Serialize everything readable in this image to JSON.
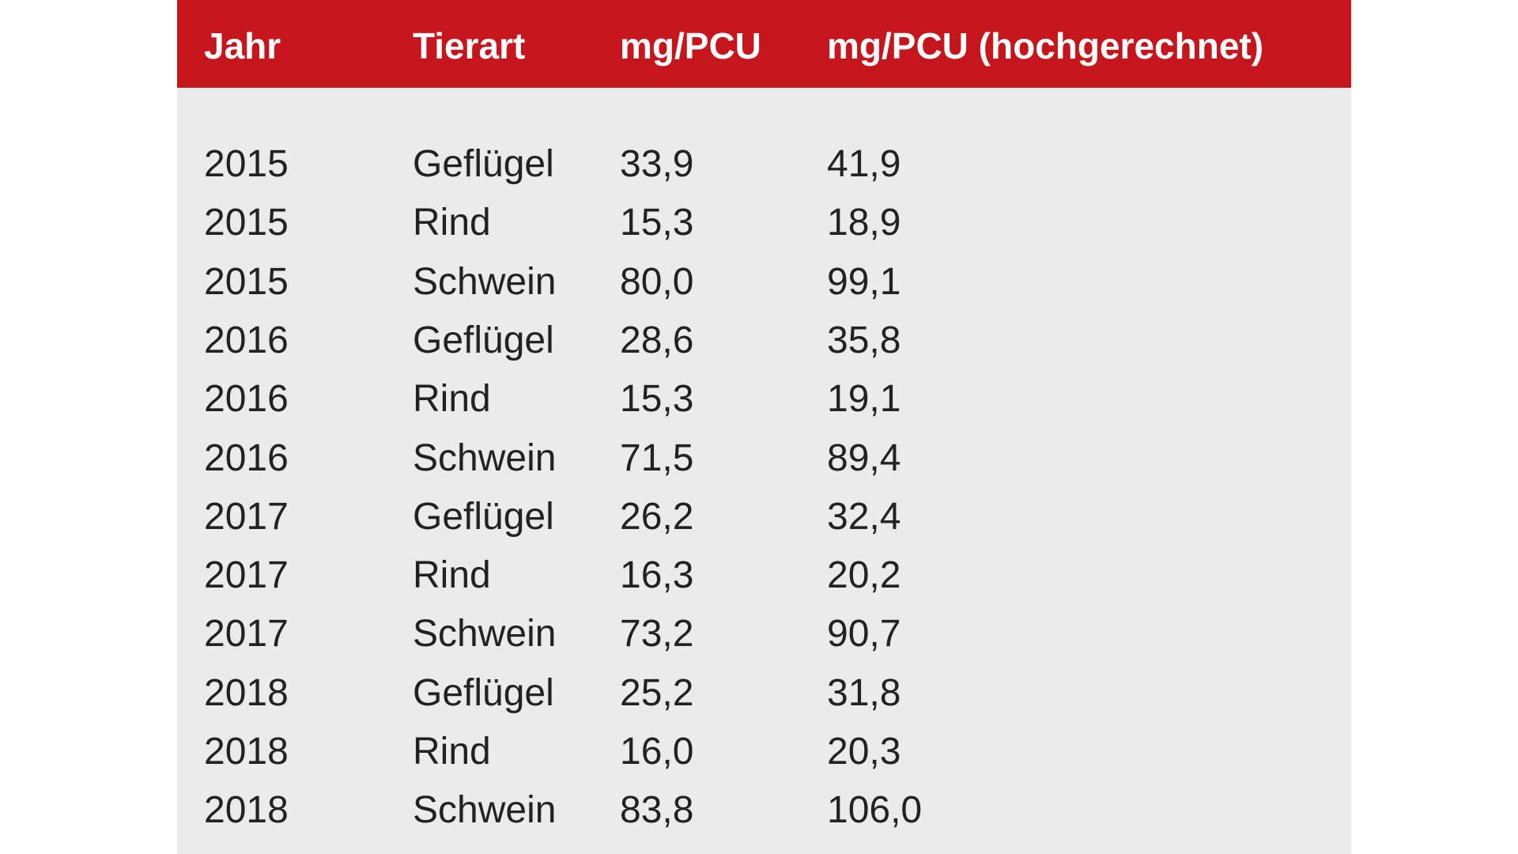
{
  "table": {
    "header": [
      "Jahr",
      "Tierart",
      "mg/PCU",
      "mg/PCU (hochgerechnet)"
    ],
    "rows": [
      [
        "2015",
        "Geflügel",
        "33,9",
        "41,9"
      ],
      [
        "2015",
        "Rind",
        "15,3",
        "18,9"
      ],
      [
        "2015",
        "Schwein",
        "80,0",
        "99,1"
      ],
      [
        "2016",
        "Geflügel",
        "28,6",
        "35,8"
      ],
      [
        "2016",
        "Rind",
        "15,3",
        "19,1"
      ],
      [
        "2016",
        "Schwein",
        "71,5",
        "89,4"
      ],
      [
        "2017",
        "Geflügel",
        "26,2",
        "32,4"
      ],
      [
        "2017",
        "Rind",
        "16,3",
        "20,2"
      ],
      [
        "2017",
        "Schwein",
        "73,2",
        "90,7"
      ],
      [
        "2018",
        "Geflügel",
        "25,2",
        "31,8"
      ],
      [
        "2018",
        "Rind",
        "16,0",
        "20,3"
      ],
      [
        "2018",
        "Schwein",
        "83,8",
        "106,0"
      ]
    ]
  }
}
